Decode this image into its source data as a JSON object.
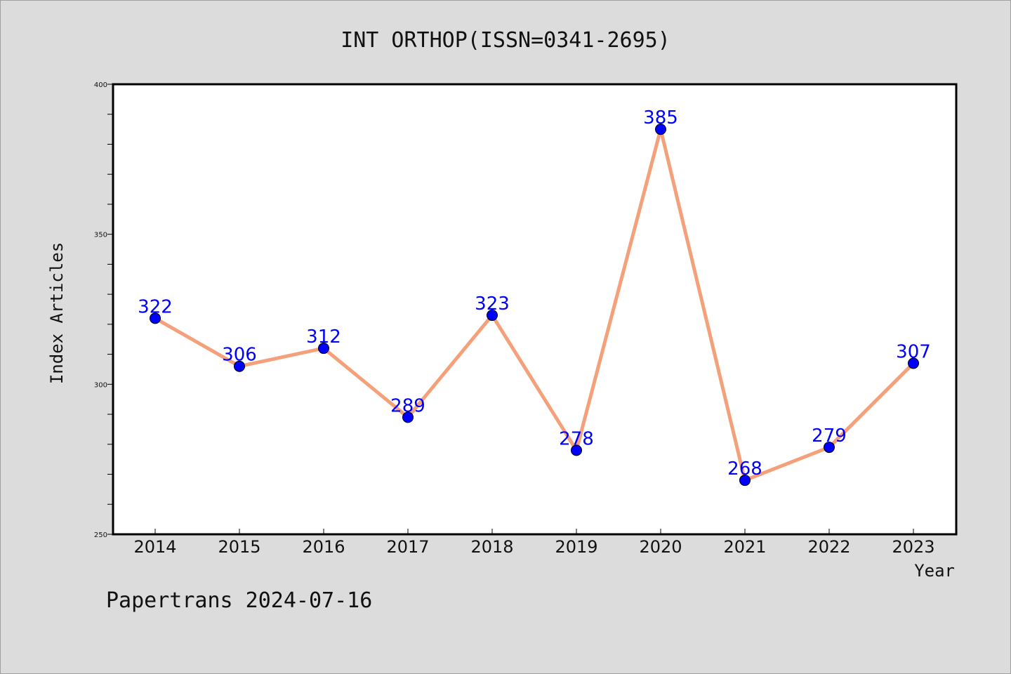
{
  "title": "INT ORTHOP(ISSN=0341-2695)",
  "footer": "Papertrans 2024-07-16",
  "colors": {
    "background": "#dcdcdc",
    "plot_background": "#ffffff",
    "line": "#f4a07a",
    "marker": "#0000ff",
    "data_label": "#0000ff"
  },
  "chart_data": {
    "type": "line",
    "xlabel": "Year",
    "ylabel": "Index Articles",
    "categories": [
      "2014",
      "2015",
      "2016",
      "2017",
      "2018",
      "2019",
      "2020",
      "2021",
      "2022",
      "2023"
    ],
    "values": [
      322,
      306,
      312,
      289,
      323,
      278,
      385,
      268,
      279,
      307
    ],
    "data_labels": [
      "322",
      "306",
      "312",
      "289",
      "323",
      "278",
      "385",
      "268",
      "279",
      "307"
    ],
    "ylim": [
      250,
      400
    ],
    "yticks": [
      250,
      300,
      350,
      400
    ],
    "ytick_labels": [
      "250",
      "300",
      "350",
      "400"
    ],
    "grid": false,
    "legend": "none"
  }
}
